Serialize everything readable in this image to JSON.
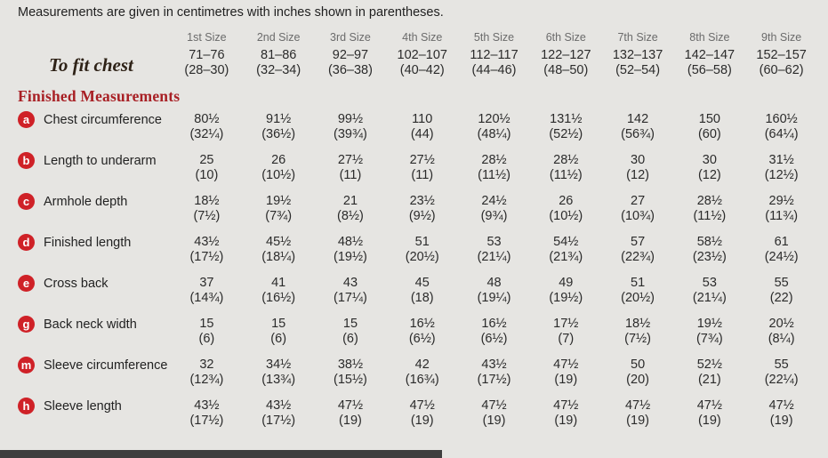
{
  "intro": "Measurements are given in centimetres with inches shown in parentheses.",
  "colors": {
    "background": "#e6e5e2",
    "heading_red": "#a82025",
    "badge_red": "#cf2127",
    "size_header_gray": "#6b6b6b",
    "body_text": "#2b2b2b",
    "footer_bar": "#3e3e3e"
  },
  "table": {
    "sizes": [
      "1st Size",
      "2nd Size",
      "3rd Size",
      "4th Size",
      "5th Size",
      "6th Size",
      "7th Size",
      "8th Size",
      "9th Size"
    ],
    "to_fit": {
      "label": "To fit chest",
      "cm": [
        "71–76",
        "81–86",
        "92–97",
        "102–107",
        "112–117",
        "122–127",
        "132–137",
        "142–147",
        "152–157"
      ],
      "in": [
        "(28–30)",
        "(32–34)",
        "(36–38)",
        "(40–42)",
        "(44–46)",
        "(48–50)",
        "(52–54)",
        "(56–58)",
        "(60–62)"
      ]
    },
    "section_heading": "Finished Measurements",
    "rows": [
      {
        "key": "a",
        "label": "Chest circumference",
        "cm": [
          "80½",
          "91½",
          "99½",
          "110",
          "120½",
          "131½",
          "142",
          "150",
          "160½"
        ],
        "in": [
          "(32¼)",
          "(36½)",
          "(39¾)",
          "(44)",
          "(48¼)",
          "(52½)",
          "(56¾)",
          "(60)",
          "(64¼)"
        ]
      },
      {
        "key": "b",
        "label": "Length to underarm",
        "cm": [
          "25",
          "26",
          "27½",
          "27½",
          "28½",
          "28½",
          "30",
          "30",
          "31½"
        ],
        "in": [
          "(10)",
          "(10½)",
          "(11)",
          "(11)",
          "(11½)",
          "(11½)",
          "(12)",
          "(12)",
          "(12½)"
        ]
      },
      {
        "key": "c",
        "label": "Armhole depth",
        "cm": [
          "18½",
          "19½",
          "21",
          "23½",
          "24½",
          "26",
          "27",
          "28½",
          "29½"
        ],
        "in": [
          "(7½)",
          "(7¾)",
          "(8½)",
          "(9½)",
          "(9¾)",
          "(10½)",
          "(10¾)",
          "(11½)",
          "(11¾)"
        ]
      },
      {
        "key": "d",
        "label": "Finished length",
        "cm": [
          "43½",
          "45½",
          "48½",
          "51",
          "53",
          "54½",
          "57",
          "58½",
          "61"
        ],
        "in": [
          "(17½)",
          "(18¼)",
          "(19½)",
          "(20½)",
          "(21¼)",
          "(21¾)",
          "(22¾)",
          "(23½)",
          "(24½)"
        ]
      },
      {
        "key": "e",
        "label": "Cross back",
        "cm": [
          "37",
          "41",
          "43",
          "45",
          "48",
          "49",
          "51",
          "53",
          "55"
        ],
        "in": [
          "(14¾)",
          "(16½)",
          "(17¼)",
          "(18)",
          "(19¼)",
          "(19½)",
          "(20½)",
          "(21¼)",
          "(22)"
        ]
      },
      {
        "key": "g",
        "label": "Back neck width",
        "cm": [
          "15",
          "15",
          "15",
          "16½",
          "16½",
          "17½",
          "18½",
          "19½",
          "20½"
        ],
        "in": [
          "(6)",
          "(6)",
          "(6)",
          "(6½)",
          "(6½)",
          "(7)",
          "(7½)",
          "(7¾)",
          "(8¼)"
        ]
      },
      {
        "key": "m",
        "label": "Sleeve circumference",
        "cm": [
          "32",
          "34½",
          "38½",
          "42",
          "43½",
          "47½",
          "50",
          "52½",
          "55"
        ],
        "in": [
          "(12¾)",
          "(13¾)",
          "(15½)",
          "(16¾)",
          "(17½)",
          "(19)",
          "(20)",
          "(21)",
          "(22¼)"
        ]
      },
      {
        "key": "h",
        "label": "Sleeve length",
        "cm": [
          "43½",
          "43½",
          "47½",
          "47½",
          "47½",
          "47½",
          "47½",
          "47½",
          "47½"
        ],
        "in": [
          "(17½)",
          "(17½)",
          "(19)",
          "(19)",
          "(19)",
          "(19)",
          "(19)",
          "(19)",
          "(19)"
        ]
      }
    ]
  }
}
